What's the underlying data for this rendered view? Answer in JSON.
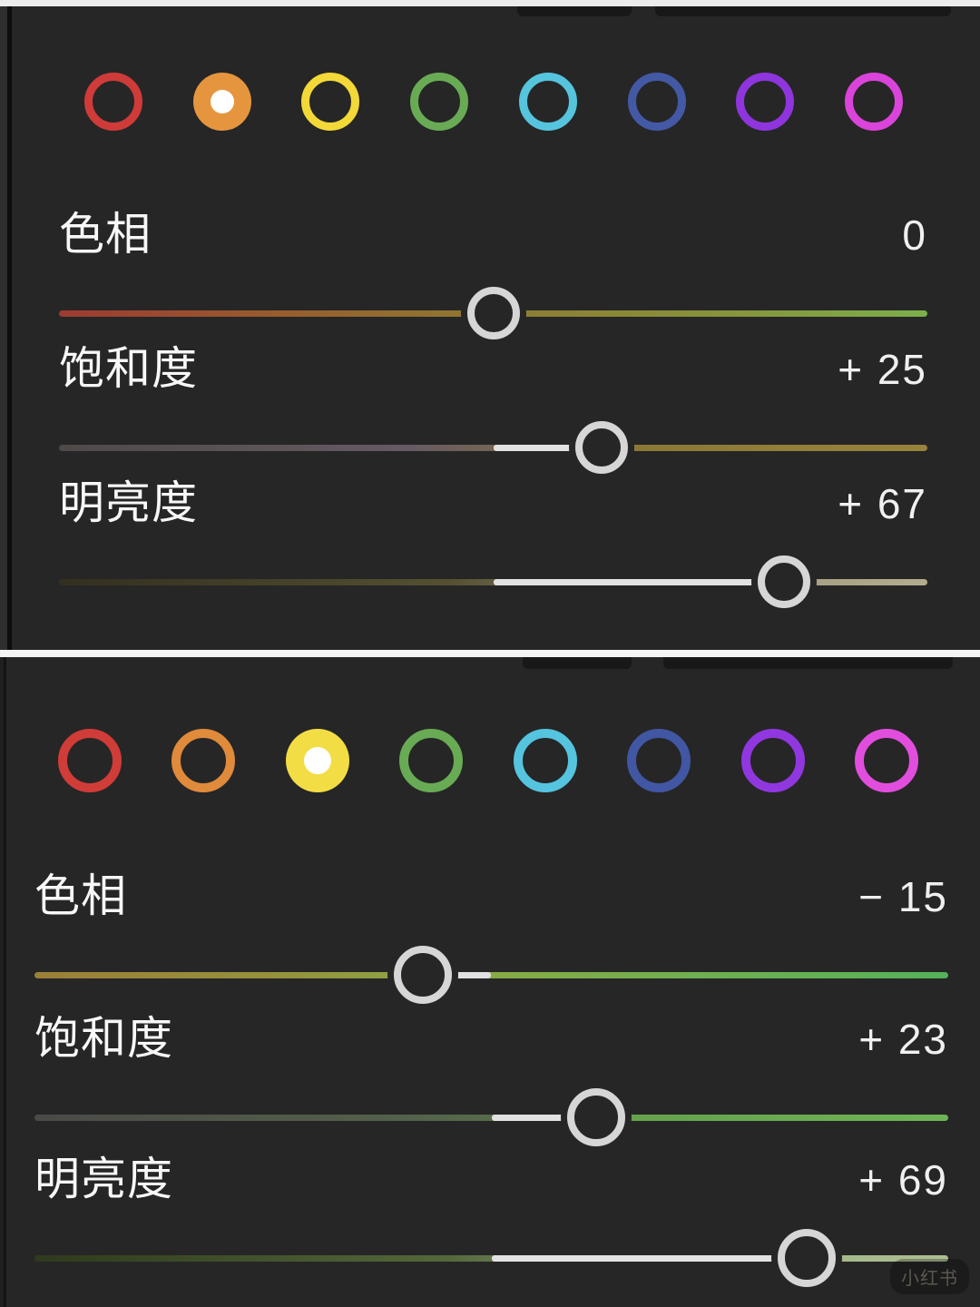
{
  "app": {
    "background": "#262626",
    "active_segment_color": "#e2e2e2",
    "handle_ring_color": "#d6d6d6"
  },
  "panels": [
    {
      "name": "hsl-panel-orange-selected",
      "colors": [
        {
          "name": "red",
          "hex": "#cf3b38",
          "selected": false
        },
        {
          "name": "orange",
          "hex": "#e6953f",
          "selected": true
        },
        {
          "name": "yellow",
          "hex": "#f2d937",
          "selected": false
        },
        {
          "name": "green",
          "hex": "#69ab55",
          "selected": false
        },
        {
          "name": "aqua",
          "hex": "#56c4dd",
          "selected": false
        },
        {
          "name": "blue",
          "hex": "#4459a5",
          "selected": false
        },
        {
          "name": "purple",
          "hex": "#8f35dd",
          "selected": false
        },
        {
          "name": "magenta",
          "hex": "#da44da",
          "selected": false
        }
      ],
      "sliders": [
        {
          "label": "色相",
          "value": 0,
          "value_display": "0",
          "stops": [
            [
              "#9e3a31",
              0
            ],
            [
              "#985c2e",
              25
            ],
            [
              "#8f7a31",
              50
            ],
            [
              "#87913c",
              75
            ],
            [
              "#7caf4a",
              100
            ]
          ]
        },
        {
          "label": "饱和度",
          "value": 25,
          "value_display": "+ 25",
          "stops": [
            [
              "#4d4a48",
              0
            ],
            [
              "#665a64",
              40
            ],
            [
              "#746353",
              50
            ],
            [
              "#897735",
              63
            ],
            [
              "#98833c",
              100
            ]
          ]
        },
        {
          "label": "明亮度",
          "value": 67,
          "value_display": "+ 67",
          "stops": [
            [
              "#322f20",
              0
            ],
            [
              "#545031",
              45
            ],
            [
              "#6f6a4c",
              55
            ],
            [
              "#a29a7d",
              80
            ],
            [
              "#b4ac8e",
              100
            ]
          ]
        }
      ]
    },
    {
      "name": "hsl-panel-yellow-selected",
      "colors": [
        {
          "name": "red",
          "hex": "#d03c38",
          "selected": false
        },
        {
          "name": "orange",
          "hex": "#e08a3c",
          "selected": false
        },
        {
          "name": "yellow",
          "hex": "#f3dd44",
          "selected": true
        },
        {
          "name": "green",
          "hex": "#68ab54",
          "selected": false
        },
        {
          "name": "aqua",
          "hex": "#55c4df",
          "selected": false
        },
        {
          "name": "blue",
          "hex": "#4157a3",
          "selected": false
        },
        {
          "name": "purple",
          "hex": "#9137df",
          "selected": false
        },
        {
          "name": "magenta",
          "hex": "#e14ede",
          "selected": false
        }
      ],
      "sliders": [
        {
          "label": "色相",
          "value": -15,
          "value_display": "− 15",
          "stops": [
            [
              "#9b7f38",
              0
            ],
            [
              "#95903c",
              25
            ],
            [
              "#8da344",
              42
            ],
            [
              "#87aa46",
              50
            ],
            [
              "#6cb050",
              75
            ],
            [
              "#54b258",
              100
            ]
          ]
        },
        {
          "label": "饱和度",
          "value": 23,
          "value_display": "+ 23",
          "stops": [
            [
              "#4a4a47",
              0
            ],
            [
              "#53604b",
              40
            ],
            [
              "#576b4a",
              50
            ],
            [
              "#64a14c",
              63
            ],
            [
              "#6fb356",
              100
            ]
          ]
        },
        {
          "label": "明亮度",
          "value": 69,
          "value_display": "+ 69",
          "stops": [
            [
              "#2e3a1c",
              0
            ],
            [
              "#53673a",
              45
            ],
            [
              "#70805a",
              55
            ],
            [
              "#a3b687",
              84
            ],
            [
              "#adbf93",
              100
            ]
          ]
        }
      ]
    }
  ],
  "watermark": "小红书"
}
